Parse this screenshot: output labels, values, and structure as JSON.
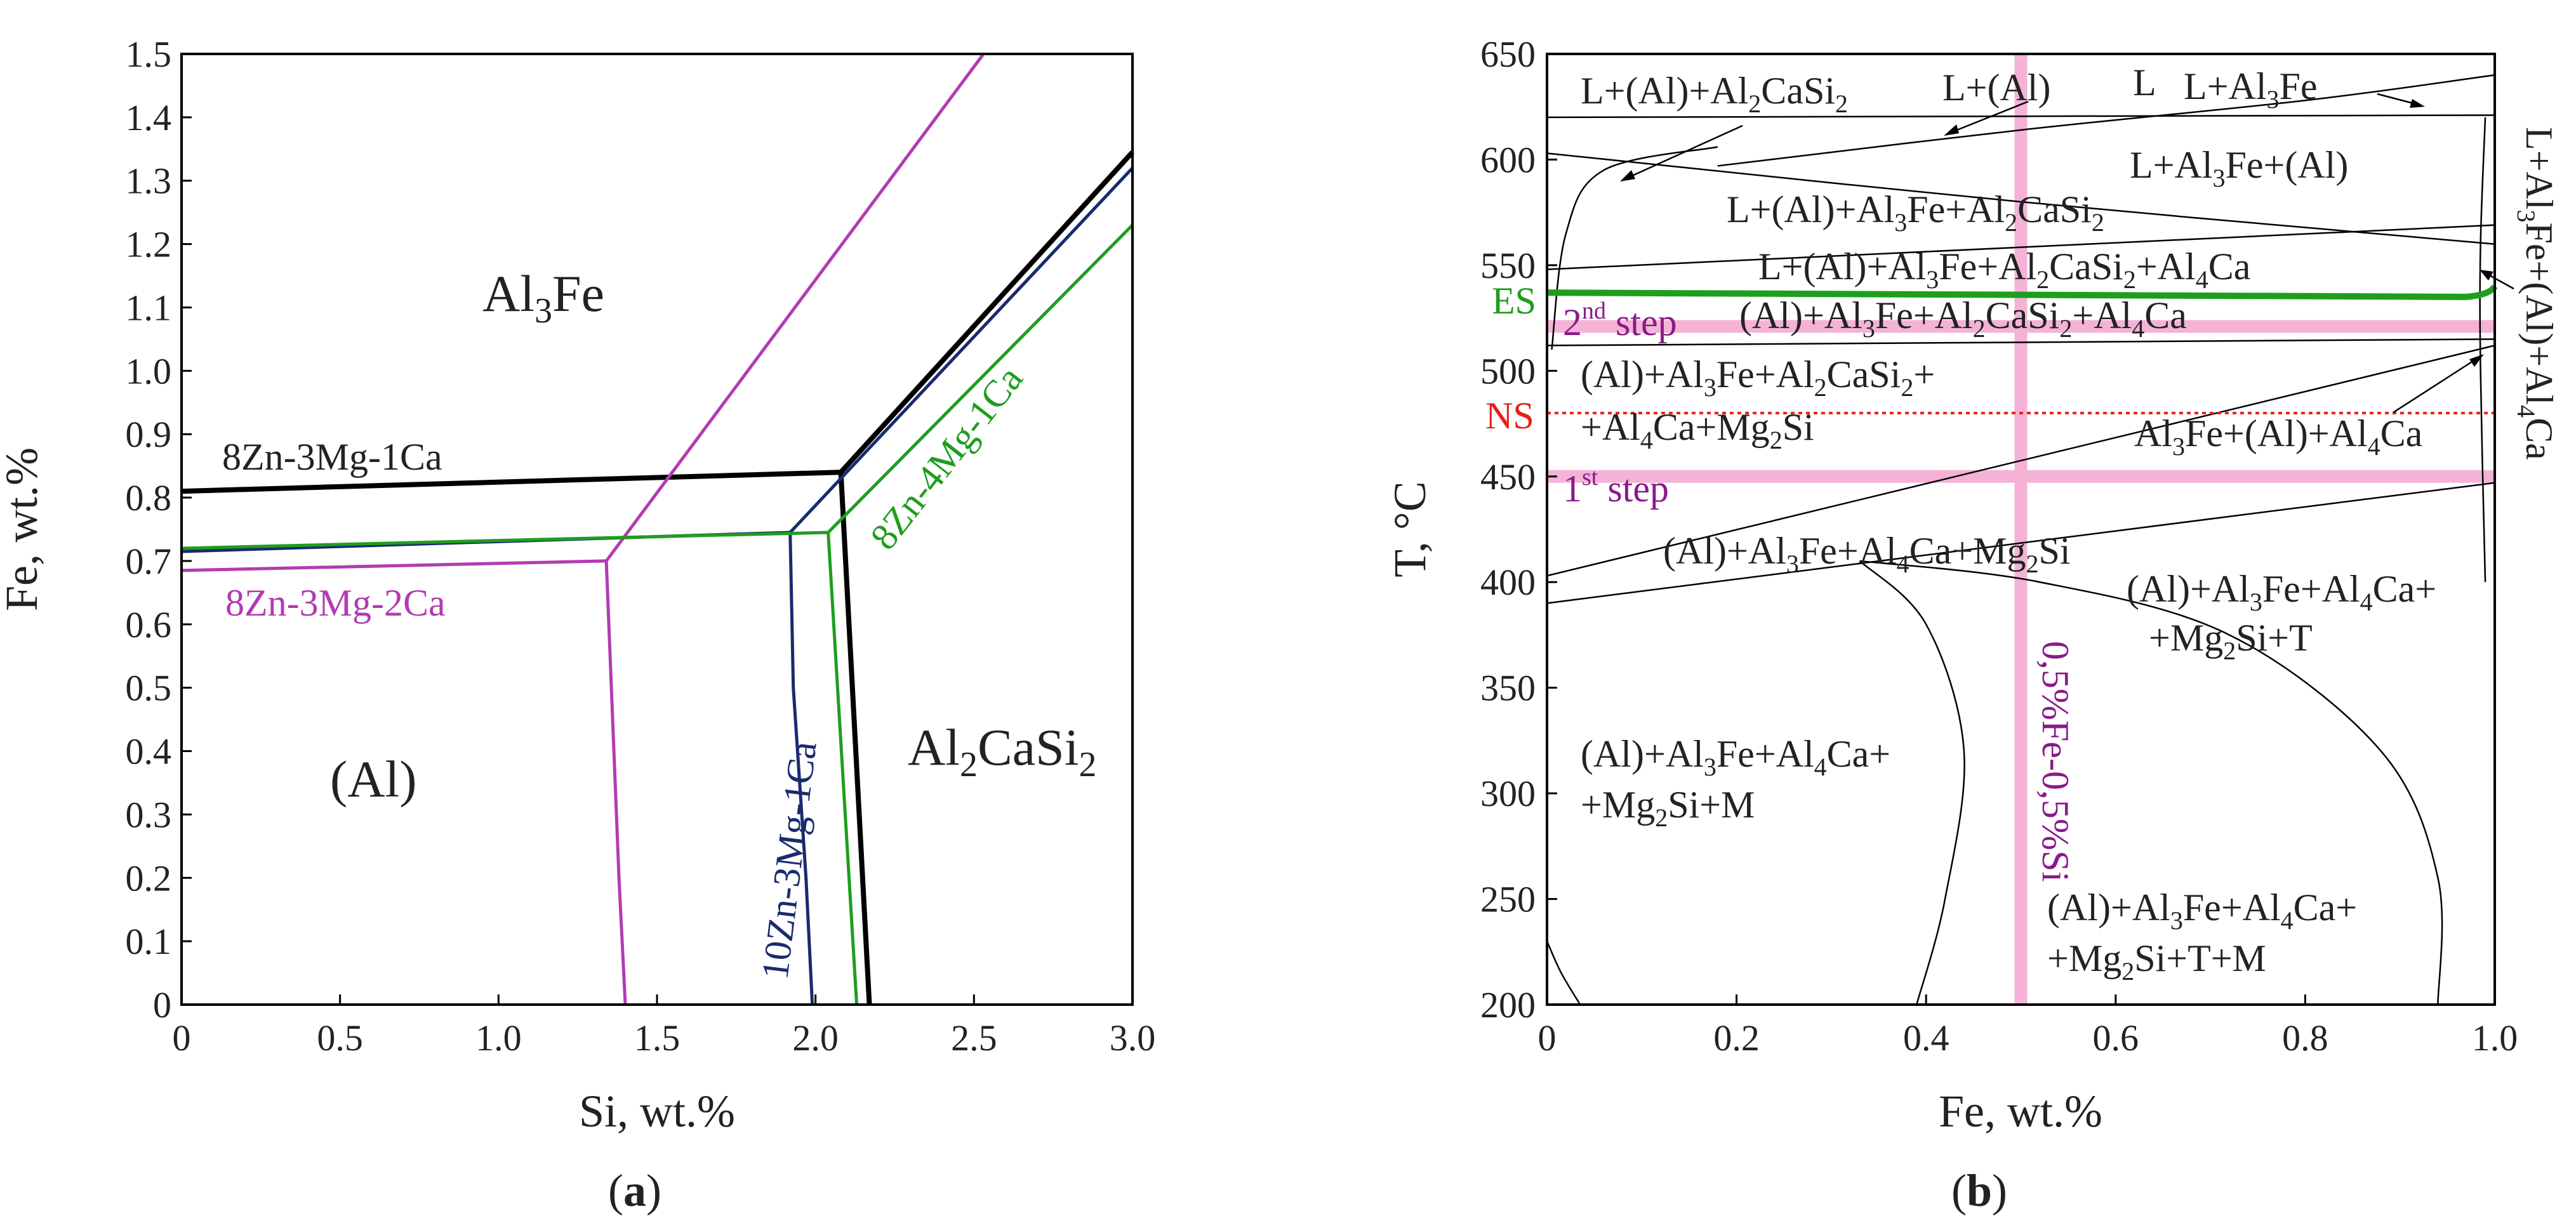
{
  "colors": {
    "black": "#000000",
    "navy": "#1a2a6e",
    "green": "#1e9e1e",
    "magenta": "#b23bb2",
    "pink": "#f4b3d6",
    "red": "#e8201a",
    "purple": "#8a1a8a"
  },
  "captions": {
    "a_open": "(",
    "a_letter": "a",
    "a_close": ")",
    "b_open": "(",
    "b_letter": "b",
    "b_close": ")"
  },
  "chart_data": [
    {
      "id": "a",
      "type": "line",
      "xlabel": "Si, wt.%",
      "ylabel": "Fe, wt.%",
      "xlim": [
        0,
        3.0
      ],
      "ylim": [
        0,
        1.5
      ],
      "xticks": [
        0,
        0.5,
        1.0,
        1.5,
        2.0,
        2.5,
        3.0
      ],
      "xtick_labels": [
        "0",
        "0.5",
        "1.0",
        "1.5",
        "2.0",
        "2.5",
        "3.0"
      ],
      "yticks": [
        0,
        0.1,
        0.2,
        0.3,
        0.4,
        0.5,
        0.6,
        0.7,
        0.8,
        0.9,
        1.0,
        1.1,
        1.2,
        1.3,
        1.4,
        1.5
      ],
      "ytick_labels": [
        "0",
        "0.1",
        "0.2",
        "0.3",
        "0.4",
        "0.5",
        "0.6",
        "0.7",
        "0.8",
        "0.9",
        "1.0",
        "1.1",
        "1.2",
        "1.3",
        "1.4",
        "1.5"
      ],
      "grid": false,
      "series": [
        {
          "name": "8Zn-3Mg-1Ca",
          "color": "#000000",
          "width": 8,
          "lines": [
            [
              [
                0,
                0.81
              ],
              [
                2.08,
                0.84
              ]
            ],
            [
              [
                2.08,
                0.84
              ],
              [
                2.17,
                0
              ]
            ],
            [
              [
                2.08,
                0.84
              ],
              [
                3.0,
                1.345
              ]
            ]
          ]
        },
        {
          "name": "8Zn-3Mg-2Ca",
          "color": "#b23bb2",
          "width": 5,
          "lines": [
            [
              [
                0,
                0.685
              ],
              [
                1.34,
                0.7
              ]
            ],
            [
              [
                1.34,
                0.7
              ],
              [
                1.36,
                0.45
              ],
              [
                1.38,
                0.2
              ],
              [
                1.4,
                0
              ]
            ],
            [
              [
                1.34,
                0.7
              ],
              [
                2.53,
                1.5
              ]
            ]
          ]
        },
        {
          "name": "10Zn-3Mg-1Ca",
          "color": "#1a2a6e",
          "width": 5,
          "lines": [
            [
              [
                0,
                0.715
              ],
              [
                1.92,
                0.745
              ]
            ],
            [
              [
                1.92,
                0.745
              ],
              [
                1.93,
                0.5
              ],
              [
                1.97,
                0.2
              ],
              [
                1.99,
                0
              ]
            ],
            [
              [
                1.92,
                0.745
              ],
              [
                3.0,
                1.32
              ]
            ]
          ]
        },
        {
          "name": "8Zn-4Mg-1Ca",
          "color": "#1e9e1e",
          "width": 5,
          "lines": [
            [
              [
                0,
                0.72
              ],
              [
                2.04,
                0.745
              ]
            ],
            [
              [
                2.04,
                0.745
              ],
              [
                2.13,
                0
              ]
            ],
            [
              [
                2.04,
                0.745
              ],
              [
                3.0,
                1.23
              ]
            ]
          ]
        }
      ],
      "region_labels": {
        "al3fe": {
          "main": "Al",
          "sub": "3",
          "rest": "Fe"
        },
        "al": "(Al)",
        "al2casi2": {
          "p1": "Al",
          "s1": "2",
          "p2": "CaSi",
          "s2": "2"
        }
      },
      "curve_labels": {
        "c8_3_1": "8Zn-3Mg-1Ca",
        "c8_3_2": "8Zn-3Mg-2Ca",
        "c10_3_1": "10Zn-3Mg-1Ca",
        "c8_4_1": "8Zn-4Mg-1Ca"
      }
    },
    {
      "id": "b",
      "type": "line",
      "xlabel": "Fe, wt.%",
      "ylabel": "T, °C",
      "xlim": [
        0,
        1.0
      ],
      "ylim": [
        200,
        650
      ],
      "xticks": [
        0,
        0.2,
        0.4,
        0.6,
        0.8,
        1.0
      ],
      "xtick_labels": [
        "0",
        "0.2",
        "0.4",
        "0.6",
        "0.8",
        "1.0"
      ],
      "yticks": [
        200,
        250,
        300,
        350,
        400,
        450,
        500,
        550,
        600,
        650
      ],
      "ytick_labels": [
        "200",
        "250",
        "300",
        "350",
        "400",
        "450",
        "500",
        "550",
        "600",
        "650"
      ],
      "grid": false,
      "reference_lines": {
        "ES": {
          "label": "ES",
          "T": 537,
          "color": "#1e9e1e"
        },
        "NS": {
          "label": "NS",
          "T": 480,
          "color": "#e8201a"
        },
        "step2": {
          "T": 521,
          "label_main": "2",
          "label_sup": "nd",
          "label_rest": " step"
        },
        "step1": {
          "T": 450,
          "label_main": "1",
          "label_sup": "st",
          "label_rest": " step"
        },
        "alloy": {
          "Fe": 0.5,
          "label": "0,5%Fe-0,5%Si"
        }
      },
      "phase_labels": {
        "L": "L",
        "l_al_al2casi2": [
          [
            "L+(Al)+Al",
            ""
          ],
          [
            "2",
            "sub"
          ],
          [
            "CaSi",
            ""
          ],
          [
            "2",
            "sub"
          ]
        ],
        "l_al": [
          [
            "L+(Al)",
            ""
          ]
        ],
        "l_al3fe": [
          [
            "L+Al",
            ""
          ],
          [
            "3",
            "sub"
          ],
          [
            "Fe",
            ""
          ]
        ],
        "l_al3fe_al": [
          [
            "L+Al",
            ""
          ],
          [
            "3",
            "sub"
          ],
          [
            "Fe+(Al)",
            ""
          ]
        ],
        "l_al_al3fe_al2casi2": [
          [
            "L+(Al)+Al",
            ""
          ],
          [
            "3",
            "sub"
          ],
          [
            "Fe+Al",
            ""
          ],
          [
            "2",
            "sub"
          ],
          [
            "CaSi",
            ""
          ],
          [
            "2",
            "sub"
          ]
        ],
        "l_al_al3fe_al2casi2_al4ca": [
          [
            "L+(Al)+Al",
            ""
          ],
          [
            "3",
            "sub"
          ],
          [
            "Fe+Al",
            ""
          ],
          [
            "2",
            "sub"
          ],
          [
            "CaSi",
            ""
          ],
          [
            "2",
            "sub"
          ],
          [
            "+Al",
            ""
          ],
          [
            "4",
            "sub"
          ],
          [
            "Ca",
            ""
          ]
        ],
        "al_al3fe_al2casi2_al4ca": [
          [
            "(Al)+Al",
            ""
          ],
          [
            "3",
            "sub"
          ],
          [
            "Fe+Al",
            ""
          ],
          [
            "2",
            "sub"
          ],
          [
            "CaSi",
            ""
          ],
          [
            "2",
            "sub"
          ],
          [
            "+Al",
            ""
          ],
          [
            "4",
            "sub"
          ],
          [
            "Ca",
            ""
          ]
        ],
        "al_al3fe_al2casi2_a": [
          [
            "(Al)+Al",
            ""
          ],
          [
            "3",
            "sub"
          ],
          [
            "Fe+Al",
            ""
          ],
          [
            "2",
            "sub"
          ],
          [
            "CaSi",
            ""
          ],
          [
            "2",
            "sub"
          ],
          [
            "+",
            ""
          ]
        ],
        "al_al3fe_al2casi2_b": [
          [
            "+Al",
            ""
          ],
          [
            "4",
            "sub"
          ],
          [
            "Ca+Mg",
            ""
          ],
          [
            "2",
            "sub"
          ],
          [
            "Si",
            ""
          ]
        ],
        "al3fe_al_al4ca": [
          [
            "Al",
            ""
          ],
          [
            "3",
            "sub"
          ],
          [
            "Fe+(Al)+Al",
            ""
          ],
          [
            "4",
            "sub"
          ],
          [
            "Ca",
            ""
          ]
        ],
        "al_al3fe_al4ca_mg2si": [
          [
            "(Al)+Al",
            ""
          ],
          [
            "3",
            "sub"
          ],
          [
            "Fe+Al",
            ""
          ],
          [
            "4",
            "sub"
          ],
          [
            "Ca+Mg",
            ""
          ],
          [
            "2",
            "sub"
          ],
          [
            "Si",
            ""
          ]
        ],
        "t_a": [
          [
            "(Al)+Al",
            ""
          ],
          [
            "3",
            "sub"
          ],
          [
            "Fe+Al",
            ""
          ],
          [
            "4",
            "sub"
          ],
          [
            "Ca+",
            ""
          ]
        ],
        "t_b": [
          [
            "+Mg",
            ""
          ],
          [
            "2",
            "sub"
          ],
          [
            "Si+T",
            ""
          ]
        ],
        "m_a": [
          [
            "(Al)+Al",
            ""
          ],
          [
            "3",
            "sub"
          ],
          [
            "Fe+Al",
            ""
          ],
          [
            "4",
            "sub"
          ],
          [
            "Ca+",
            ""
          ]
        ],
        "m_b": [
          [
            "+Mg",
            ""
          ],
          [
            "2",
            "sub"
          ],
          [
            "Si+M",
            ""
          ]
        ],
        "tm_a": [
          [
            "(Al)+Al",
            ""
          ],
          [
            "3",
            "sub"
          ],
          [
            "Fe+Al",
            ""
          ],
          [
            "4",
            "sub"
          ],
          [
            "Ca+",
            ""
          ]
        ],
        "tm_b": [
          [
            "+Mg",
            ""
          ],
          [
            "2",
            "sub"
          ],
          [
            "Si+T+M",
            ""
          ]
        ],
        "right_vertical": [
          [
            "L+Al",
            ""
          ],
          [
            "3",
            "sub"
          ],
          [
            "Fe+(Al)+Al",
            ""
          ],
          [
            "4",
            "sub"
          ],
          [
            "Ca",
            ""
          ]
        ]
      },
      "boundaries": [
        {
          "name": "eutectic-620",
          "points": [
            [
              0,
              620
            ],
            [
              1.0,
              621
            ]
          ]
        },
        {
          "name": "liquidus-al3fe",
          "points": [
            [
              0.18,
              597
            ],
            [
              0.5,
              614
            ],
            [
              0.8,
              628
            ],
            [
              1.0,
              640
            ]
          ]
        },
        {
          "name": "liquidus-al2casi2",
          "points": [
            [
              0,
              603
            ],
            [
              0.5,
              580
            ],
            [
              1.0,
              560
            ]
          ]
        },
        {
          "name": "curve-left",
          "points": [
            [
              0.005,
              510
            ],
            [
              0.02,
              565
            ],
            [
              0.06,
              595
            ],
            [
              0.18,
              606
            ]
          ]
        },
        {
          "name": "line-568",
          "points": [
            [
              0,
              548
            ],
            [
              1.0,
              569
            ]
          ]
        },
        {
          "name": "solvus-es",
          "points": [
            [
              0,
              537
            ],
            [
              0.98,
              535
            ]
          ]
        },
        {
          "name": "line-512",
          "points": [
            [
              0,
              512
            ],
            [
              1.0,
              515
            ]
          ]
        },
        {
          "name": "diag-403",
          "points": [
            [
              0,
              403
            ],
            [
              1.0,
              512
            ]
          ]
        },
        {
          "name": "line-390",
          "points": [
            [
              0,
              390
            ],
            [
              1.0,
              447
            ]
          ]
        },
        {
          "name": "dome-t",
          "points": [
            [
              0.33,
              410
            ],
            [
              0.52,
              400
            ],
            [
              0.72,
              375
            ],
            [
              0.88,
              320
            ],
            [
              0.94,
              260
            ],
            [
              0.94,
              200
            ]
          ]
        },
        {
          "name": "dome-m",
          "points": [
            [
              0.33,
              410
            ],
            [
              0.4,
              380
            ],
            [
              0.44,
              320
            ],
            [
              0.42,
              250
            ],
            [
              0.39,
              200
            ]
          ]
        },
        {
          "name": "corner-low",
          "points": [
            [
              0,
              230
            ],
            [
              0.015,
              215
            ],
            [
              0.035,
              200
            ]
          ]
        },
        {
          "name": "right-edge",
          "points": [
            [
              0.99,
              620
            ],
            [
              0.985,
              560
            ],
            [
              0.985,
              500
            ],
            [
              0.99,
              400
            ]
          ]
        }
      ]
    }
  ]
}
